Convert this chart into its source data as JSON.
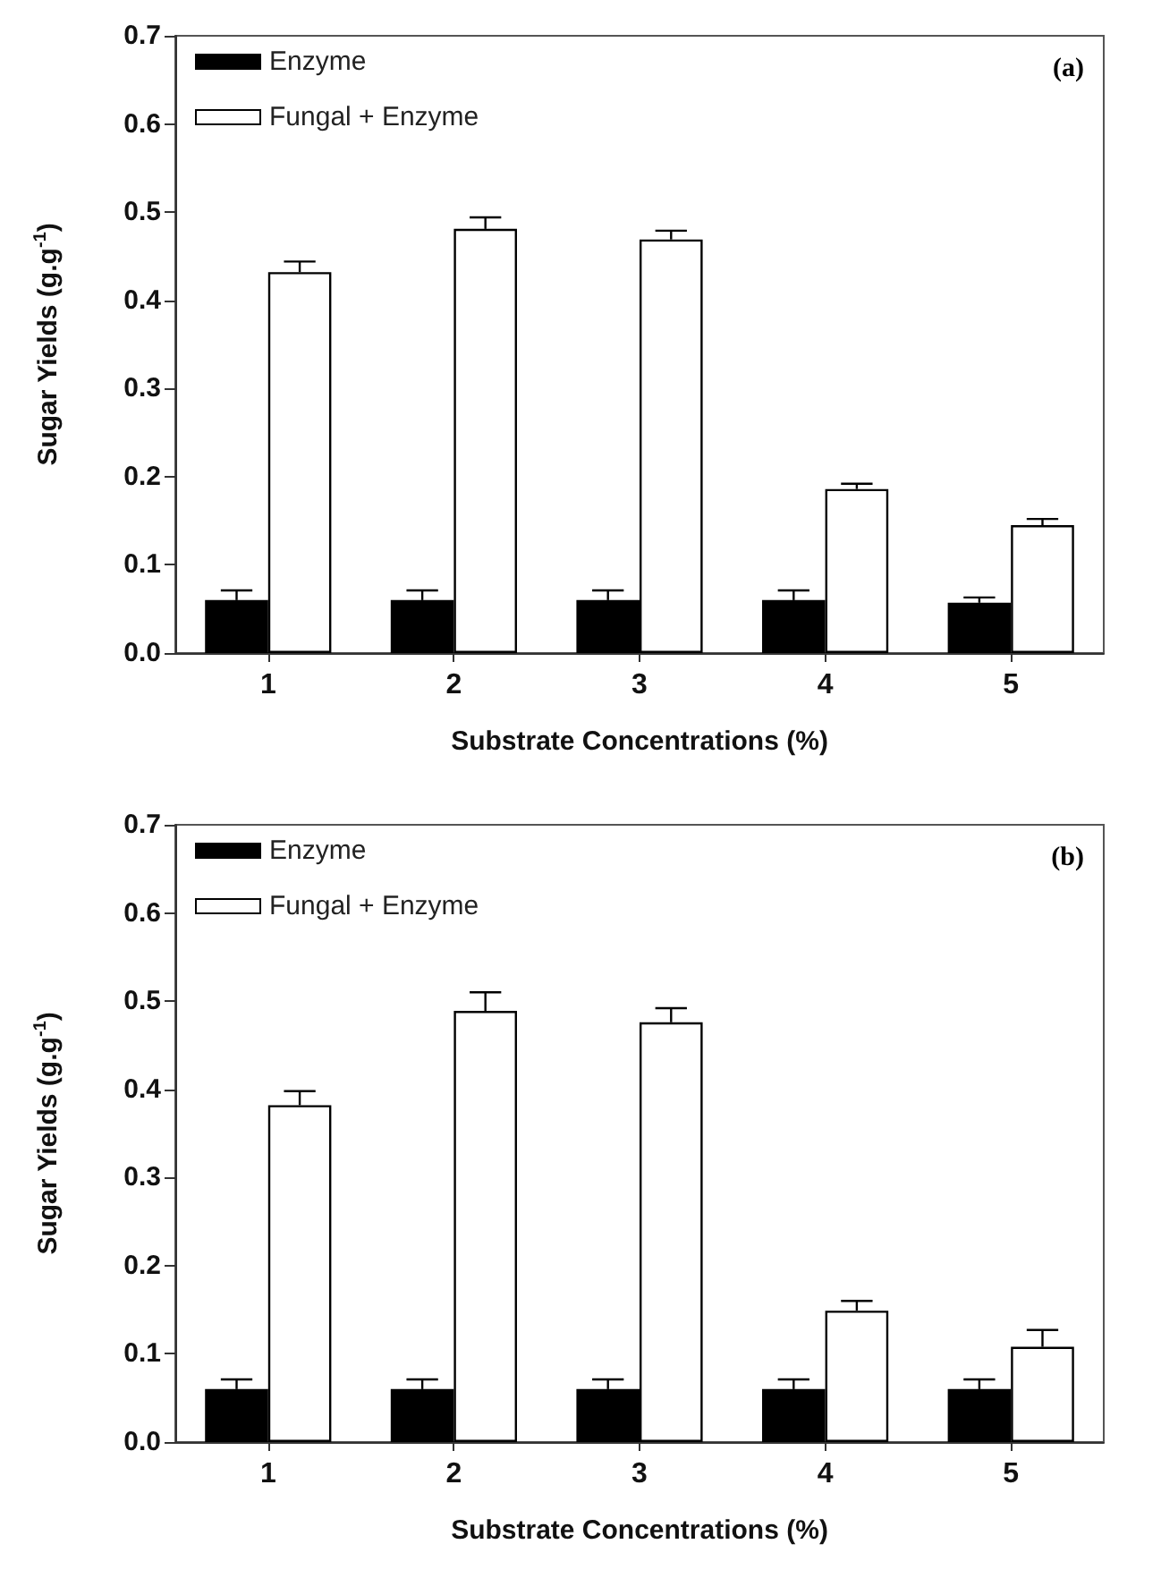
{
  "chart_data": [
    {
      "type": "bar",
      "title": "(a)",
      "xlabel": "Substrate Concentrations (%)",
      "ylabel": "Sugar Yields (g.g$^{-1}$)",
      "categories": [
        "1",
        "2",
        "3",
        "4",
        "5"
      ],
      "series": [
        {
          "name": "Enzyme",
          "color": "#000000",
          "values": [
            0.06,
            0.06,
            0.06,
            0.06,
            0.057
          ],
          "errors": [
            [
              0.06,
              0.071
            ],
            [
              0.06,
              0.071
            ],
            [
              0.06,
              0.071
            ],
            [
              0.06,
              0.071
            ],
            [
              0.057,
              0.063
            ]
          ]
        },
        {
          "name": "Fungal + Enzyme",
          "color": "#ffffff",
          "values": [
            0.432,
            0.481,
            0.469,
            0.186,
            0.145
          ],
          "errors": [
            [
              0.432,
              0.444
            ],
            [
              0.481,
              0.494
            ],
            [
              0.469,
              0.479
            ],
            [
              0.186,
              0.192
            ],
            [
              0.145,
              0.152
            ]
          ]
        }
      ],
      "ylim": [
        0,
        0.7
      ],
      "yticks": [
        {
          "value": 0,
          "label": "0.0"
        },
        0.1,
        0.2,
        0.3,
        0.4,
        0.5,
        0.6,
        0.7
      ],
      "grid": false,
      "legend": "top left"
    },
    {
      "type": "bar",
      "title": "(b)",
      "xlabel": "Substrate Concentrations (%)",
      "ylabel": "Sugar Yields (g.g$^{-1}$)",
      "categories": [
        "1",
        "2",
        "3",
        "4",
        "5"
      ],
      "series": [
        {
          "name": "Enzyme",
          "color": "#000000",
          "values": [
            0.06,
            0.06,
            0.06,
            0.06,
            0.06
          ],
          "errors": [
            [
              0.06,
              0.071
            ],
            [
              0.06,
              0.071
            ],
            [
              0.06,
              0.071
            ],
            [
              0.06,
              0.071
            ],
            [
              0.06,
              0.071
            ]
          ]
        },
        {
          "name": "Fungal + Enzyme",
          "color": "#ffffff",
          "values": [
            0.382,
            0.489,
            0.476,
            0.149,
            0.108
          ],
          "errors": [
            [
              0.382,
              0.398
            ],
            [
              0.489,
              0.51
            ],
            [
              0.476,
              0.492
            ],
            [
              0.149,
              0.16
            ],
            [
              0.108,
              0.127
            ]
          ]
        }
      ],
      "ylim": [
        0,
        0.7
      ],
      "yticks": [
        {
          "value": 0,
          "label": "0.0"
        },
        0.1,
        0.2,
        0.3,
        0.4,
        0.5,
        0.6,
        0.7
      ],
      "grid": false,
      "legend": "top left"
    }
  ]
}
